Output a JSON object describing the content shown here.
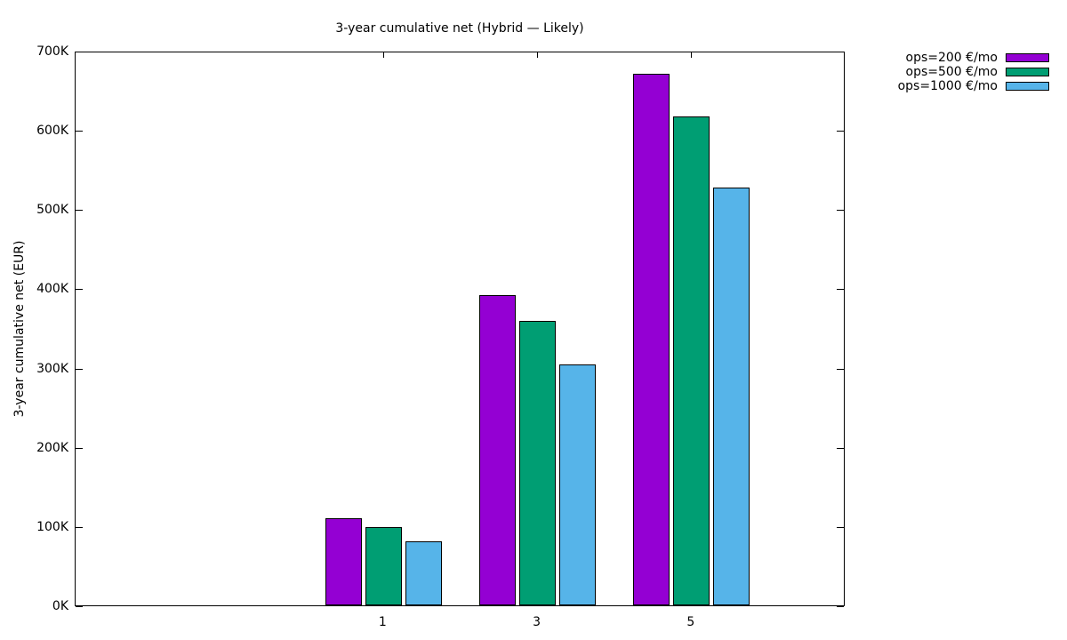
{
  "title": "3-year cumulative net (Hybrid — Likely)",
  "y_axis": {
    "label": "3-year cumulative net (EUR)",
    "tick_labels": [
      "0K",
      "100K",
      "200K",
      "300K",
      "400K",
      "500K",
      "600K",
      "700K"
    ]
  },
  "x_axis": {
    "tick_labels": [
      "1",
      "3",
      "5"
    ]
  },
  "chart_data": {
    "type": "bar",
    "title": "3-year cumulative net (Hybrid — Likely)",
    "xlabel": "",
    "ylabel": "3-year cumulative net (EUR)",
    "categories": [
      "1",
      "3",
      "5"
    ],
    "series": [
      {
        "name": "ops=200 €/mo",
        "color": "#9400d3",
        "values": [
          110000,
          391000,
          671000
        ]
      },
      {
        "name": "ops=500 €/mo",
        "color": "#009e73",
        "values": [
          99000,
          359000,
          617000
        ]
      },
      {
        "name": "ops=1000 €/mo",
        "color": "#56b4e9",
        "values": [
          81000,
          304000,
          527000
        ]
      }
    ],
    "ylim": [
      0,
      700000
    ],
    "y_tick_step": 100000,
    "y_tick_format": "K",
    "grid": false,
    "legend_position": "outside-top-right",
    "bar_border_color": "#000000",
    "background_color": "#ffffff"
  }
}
